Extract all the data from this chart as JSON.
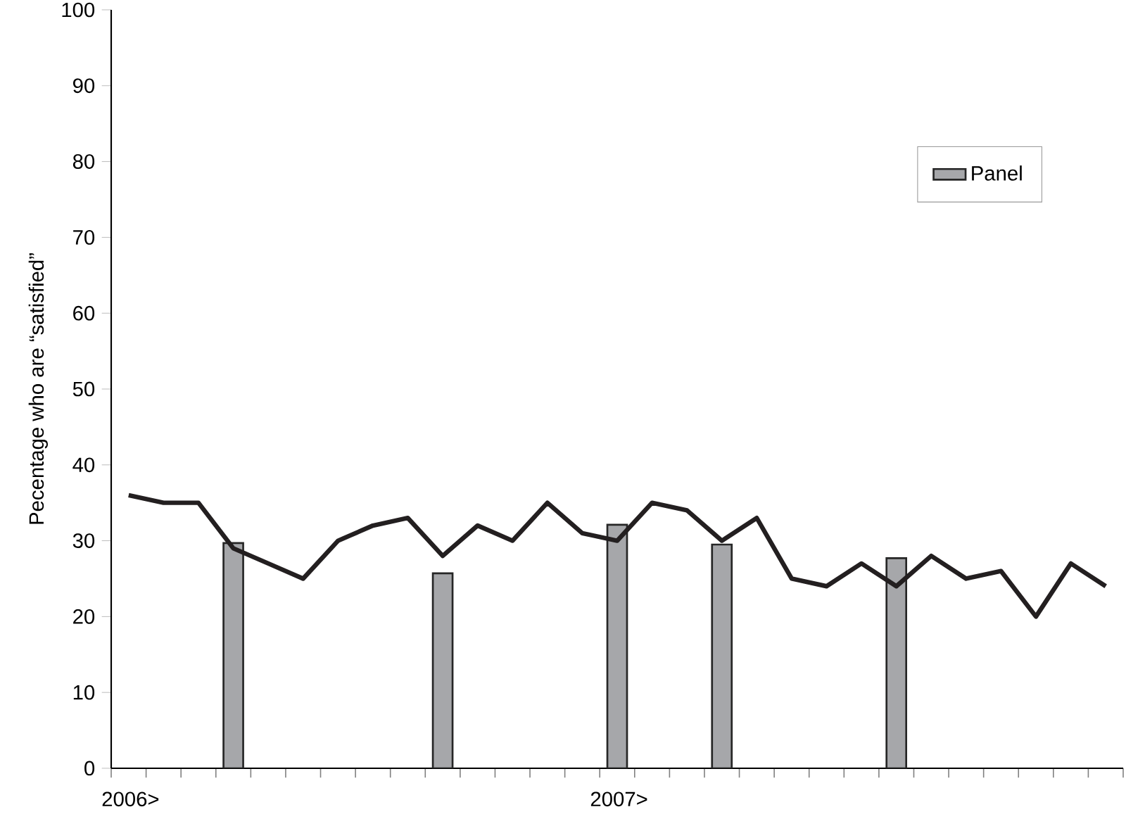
{
  "chart_data": {
    "type": "bar",
    "ylabel": "Pecentage who are “satisfied”",
    "categories": [
      "2006>",
      null,
      null,
      null,
      null,
      null,
      null,
      null,
      null,
      null,
      null,
      null,
      null,
      null,
      "2007>",
      null,
      null,
      null,
      null,
      null,
      null,
      null,
      null,
      null,
      null,
      null,
      null,
      null,
      null
    ],
    "series": [
      {
        "name": "Panel",
        "color": "#a6a7aa",
        "values": [
          null,
          null,
          null,
          29.7,
          null,
          null,
          null,
          null,
          null,
          25.7,
          null,
          null,
          null,
          null,
          32.1,
          null,
          null,
          29.5,
          null,
          null,
          null,
          null,
          27.7,
          null,
          null,
          null,
          null,
          null,
          null
        ]
      },
      {
        "type": "line",
        "color": "#231f20",
        "values": [
          36,
          35,
          35,
          29,
          27,
          25,
          30,
          32,
          33,
          28,
          32,
          30,
          35,
          31,
          30,
          35,
          34,
          30,
          33,
          25,
          24,
          27,
          24,
          28,
          25,
          26,
          20,
          27,
          24
        ]
      }
    ],
    "ylim": [
      0,
      100
    ],
    "yticks": [
      0,
      10,
      20,
      30,
      40,
      50,
      60,
      70,
      80,
      90,
      100
    ],
    "grid": false,
    "legend": "top right",
    "marker": "none"
  }
}
